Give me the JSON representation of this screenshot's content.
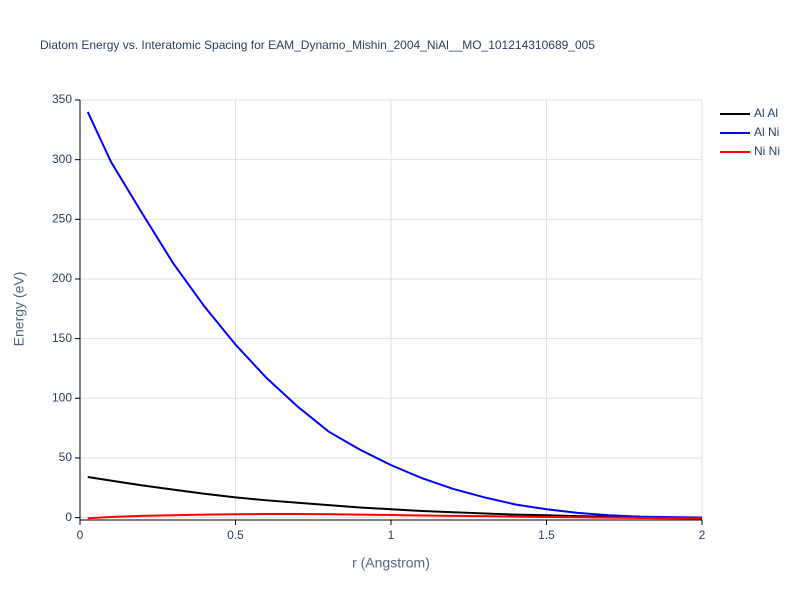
{
  "chart_data": {
    "type": "line",
    "title": "Diatom Energy vs. Interatomic Spacing for EAM_Dynamo_Mishin_2004_NiAl__MO_101214310689_005",
    "x_label": "r (Angstrom)",
    "y_label": "Energy (eV)",
    "x": [
      0.025,
      0.1,
      0.2,
      0.3,
      0.4,
      0.5,
      0.6,
      0.7,
      0.8,
      0.9,
      1.0,
      1.1,
      1.2,
      1.3,
      1.4,
      1.5,
      1.6,
      1.7,
      1.8,
      1.9,
      2.0
    ],
    "series": [
      {
        "name": "Al Al",
        "color": "#000000",
        "values": [
          34,
          31,
          27,
          23.5,
          20,
          17,
          14.5,
          12.5,
          10.5,
          8.5,
          7,
          5.5,
          4.5,
          3.5,
          2.5,
          2,
          1.3,
          0.8,
          0.5,
          0.2,
          0
        ]
      },
      {
        "name": "Al Ni",
        "color": "#0000ff",
        "values": [
          340,
          298,
          255,
          213,
          177,
          145,
          117,
          93,
          72,
          57,
          44,
          33,
          24,
          17,
          11,
          7,
          4,
          2,
          0.8,
          0.3,
          0.1
        ]
      },
      {
        "name": "Ni Ni",
        "color": "#ff0000",
        "values": [
          -0.5,
          0.5,
          1.5,
          2,
          2.5,
          2.8,
          3,
          3,
          2.8,
          2.5,
          2.2,
          1.8,
          1.5,
          1.2,
          0.8,
          0.5,
          0.3,
          0,
          -0.3,
          -0.5,
          -0.7
        ]
      }
    ],
    "xlim": [
      0,
      2
    ],
    "ylim": [
      -2,
      350
    ],
    "xticks": [
      0,
      0.5,
      1,
      1.5,
      2
    ],
    "yticks": [
      0,
      50,
      100,
      150,
      200,
      250,
      300,
      350
    ],
    "grid": true,
    "legend": "top-right"
  }
}
